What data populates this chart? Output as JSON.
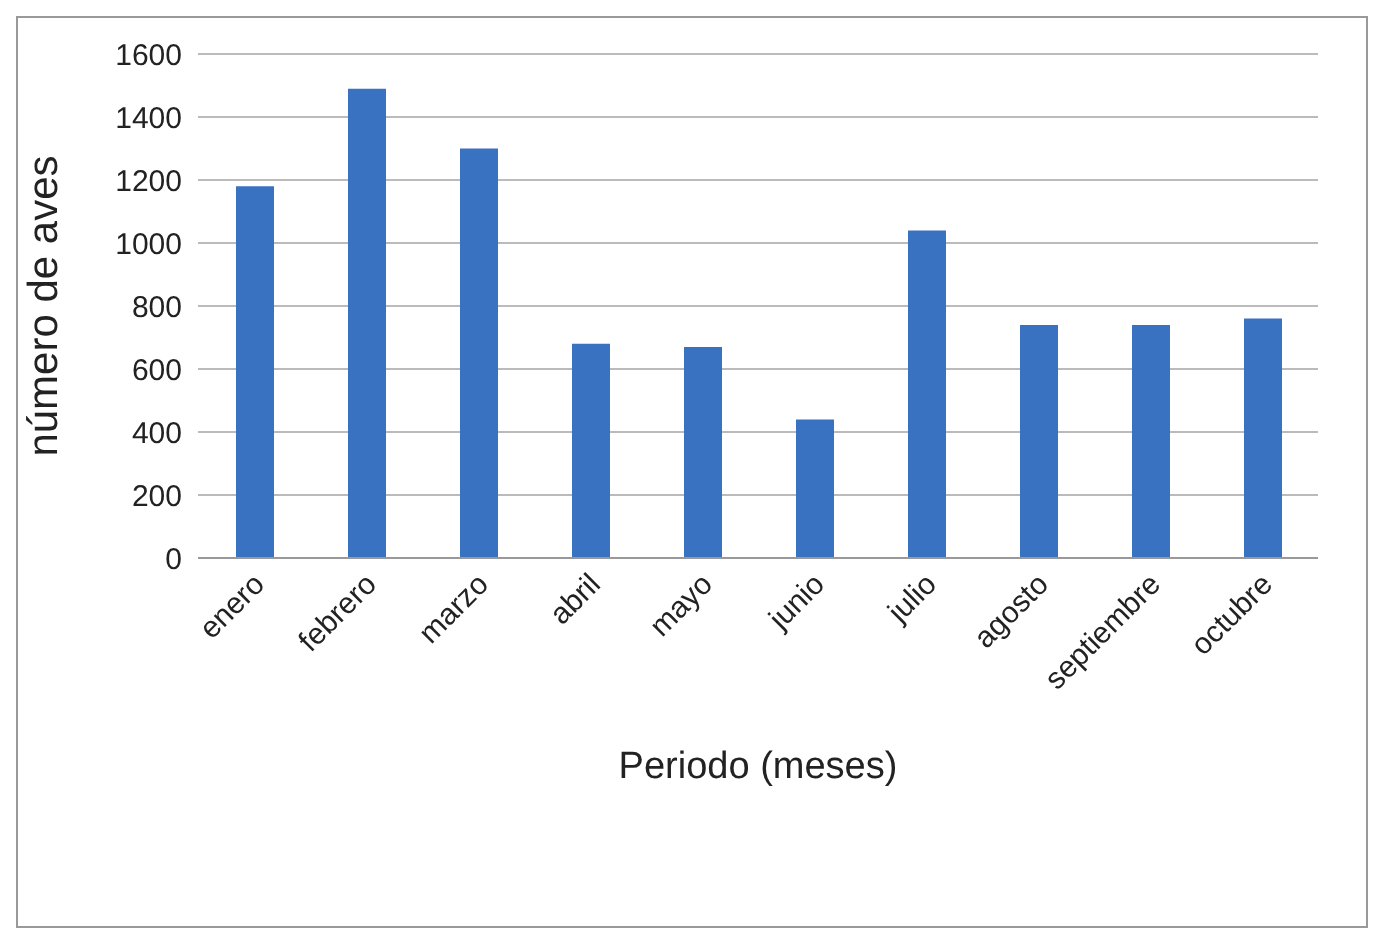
{
  "chart_data": {
    "type": "bar",
    "xlabel": "Periodo (meses)",
    "ylabel": "número de aves",
    "categories": [
      "enero",
      "febrero",
      "marzo",
      "abril",
      "mayo",
      "junio",
      "julio",
      "agosto",
      "septiembre",
      "octubre"
    ],
    "values": [
      1180,
      1490,
      1300,
      680,
      670,
      440,
      1040,
      740,
      740,
      760
    ],
    "color": "#3a72c2",
    "ylim": [
      0,
      1600
    ],
    "yticks": [
      0,
      200,
      400,
      600,
      800,
      1000,
      1200,
      1400,
      1600
    ],
    "grid": "y"
  }
}
